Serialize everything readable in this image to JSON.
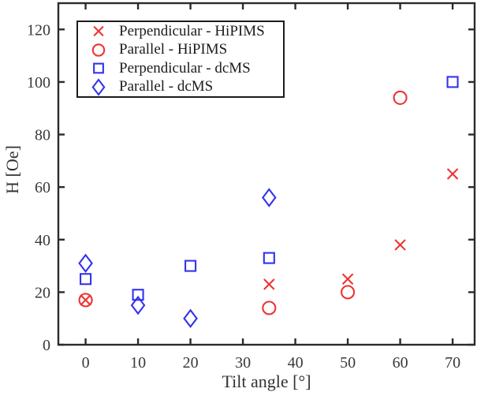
{
  "chart_data": {
    "type": "scatter",
    "title": "",
    "xlabel": "Tilt angle [°]",
    "ylabel": "H [Oe]",
    "xlim": [
      -5.2,
      74.2
    ],
    "ylim": [
      0,
      130
    ],
    "xticks": [
      0,
      10,
      20,
      30,
      40,
      50,
      60,
      70
    ],
    "yticks": [
      0,
      20,
      40,
      60,
      80,
      100,
      120
    ],
    "grid": false,
    "box": true,
    "tick_direction": "in",
    "legend_position": "top-left",
    "axis_color": "#2b2b2b",
    "background_color": "#ffffff",
    "series": [
      {
        "name": "Perpendicular - HiPIMS",
        "marker": "cross",
        "color": "#ee3333",
        "points": [
          [
            0,
            17
          ],
          [
            35,
            23
          ],
          [
            50,
            25
          ],
          [
            60,
            38
          ],
          [
            70,
            65
          ]
        ]
      },
      {
        "name": "Parallel - HiPIMS",
        "marker": "circle",
        "color": "#ee3333",
        "points": [
          [
            0,
            17
          ],
          [
            35,
            14
          ],
          [
            50,
            20
          ],
          [
            60,
            94
          ]
        ]
      },
      {
        "name": "Perpendicular - dcMS",
        "marker": "square",
        "color": "#3333ee",
        "points": [
          [
            0,
            25
          ],
          [
            10,
            19
          ],
          [
            20,
            30
          ],
          [
            35,
            33
          ],
          [
            70,
            100
          ]
        ]
      },
      {
        "name": "Parallel - dcMS",
        "marker": "diamond",
        "color": "#3333ee",
        "points": [
          [
            0,
            31
          ],
          [
            10,
            15
          ],
          [
            20,
            10
          ],
          [
            35,
            56
          ]
        ]
      }
    ]
  }
}
